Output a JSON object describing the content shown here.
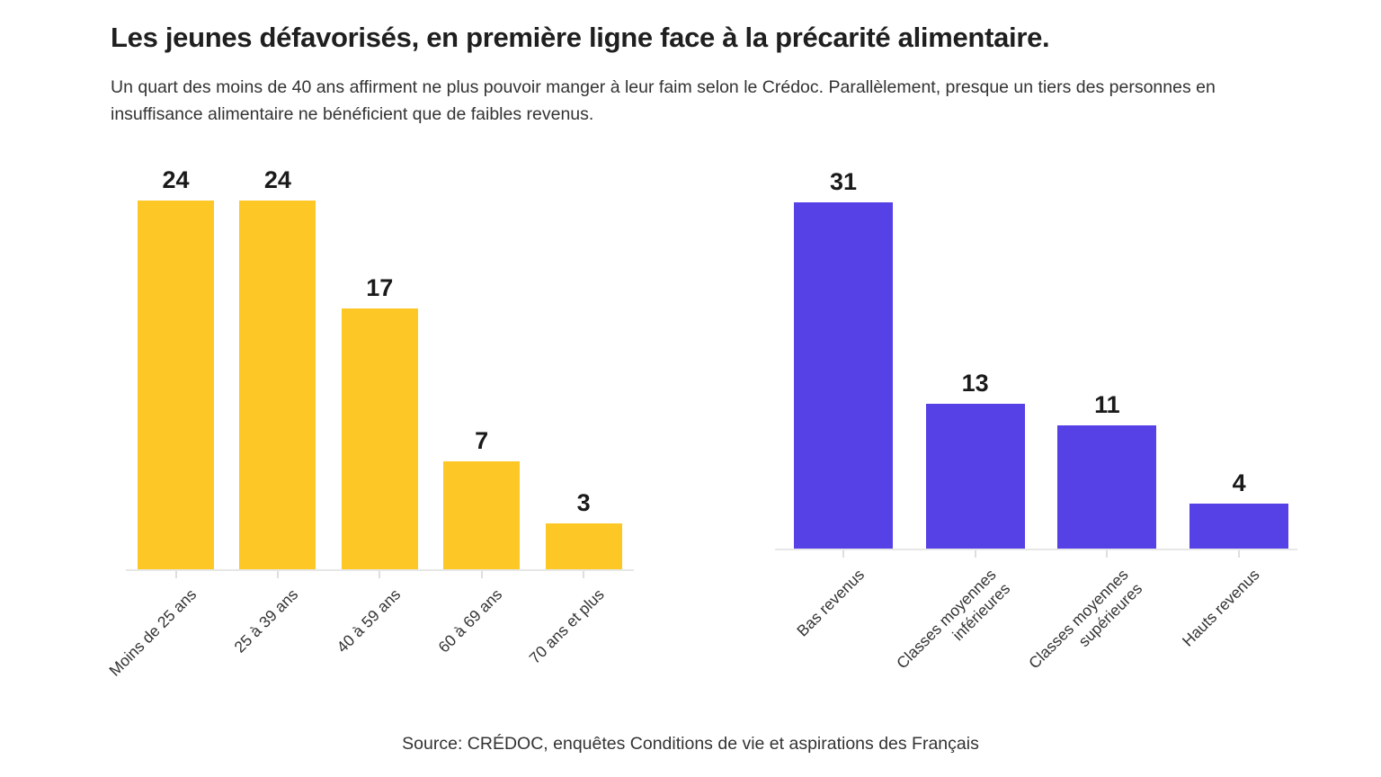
{
  "header": {
    "title": "Les jeunes défavorisés, en première ligne face à la précarité alimentaire.",
    "subtitle": "Un quart des moins de 40 ans affirment ne plus pouvoir manger à leur faim selon le Crédoc. Parallèlement, presque un tiers des personnes en insuffisance alimentaire ne bénéficient que de faibles revenus."
  },
  "footer": {
    "source": "Source: CRÉDOC, enquêtes Conditions de vie et aspirations des Français"
  },
  "colors": {
    "bar_yellow": "#FDC725",
    "bar_purple": "#5541E6",
    "axis_line": "#E7E7E7",
    "text_dark": "#1F1F1F",
    "text_body": "#333333"
  },
  "chart_data": [
    {
      "id": "age-chart",
      "type": "bar",
      "categories": [
        "Moins de 25 ans",
        "25 à 39 ans",
        "40 à 59 ans",
        "60 à 69 ans",
        "70 ans et plus"
      ],
      "values": [
        24,
        24,
        17,
        7,
        3
      ],
      "bar_color": "#FDC725",
      "value_labels_shown": true,
      "xlabel": "",
      "ylabel": "",
      "ylim": [
        0,
        27
      ],
      "grid": false,
      "legend": "none"
    },
    {
      "id": "income-chart",
      "type": "bar",
      "categories": [
        "Bas revenus",
        "Classes moyennes\ninférieures",
        "Classes moyennes\nsupérieures",
        "Hauts revenus"
      ],
      "values": [
        31,
        13,
        11,
        4
      ],
      "bar_color": "#5541E6",
      "value_labels_shown": true,
      "xlabel": "",
      "ylabel": "",
      "ylim": [
        0,
        33
      ],
      "grid": false,
      "legend": "none"
    }
  ]
}
